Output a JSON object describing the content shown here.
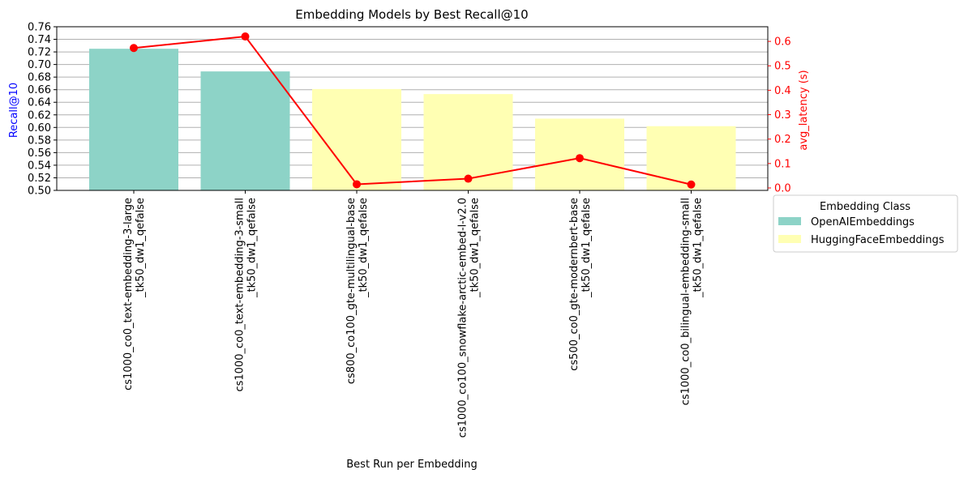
{
  "chart_data": {
    "type": "bar",
    "title": "Embedding Models by Best Recall@10",
    "xlabel": "Best Run per Embedding",
    "ylabel": "Recall@10",
    "y2label": "avg_latency (s)",
    "ylim": [
      0.5,
      0.76
    ],
    "y2lim": [
      -0.01,
      0.66
    ],
    "yticks": [
      "0.50",
      "0.52",
      "0.54",
      "0.56",
      "0.58",
      "0.60",
      "0.62",
      "0.64",
      "0.66",
      "0.68",
      "0.70",
      "0.72",
      "0.74",
      "0.76"
    ],
    "y2ticks": [
      "0.0",
      "0.1",
      "0.2",
      "0.3",
      "0.4",
      "0.5",
      "0.6"
    ],
    "grid": "horizontal",
    "categories": [
      [
        "cs1000_co0_text-embedding-3-large",
        "_tk50_dw1_qefalse"
      ],
      [
        "cs1000_co0_text-embedding-3-small",
        "_tk50_dw1_qefalse"
      ],
      [
        "cs800_co100_gte-multilingual-base",
        "_tk50_dw1_qefalse"
      ],
      [
        "cs1000_co100_snowflake-arctic-embed-l-v2.0",
        "_tk50_dw1_qefalse"
      ],
      [
        "cs500_co0_gte-modernbert-base",
        "_tk50_dw1_qefalse"
      ],
      [
        "cs1000_co0_bilingual-embedding-small",
        "_tk50_dw1_qefalse"
      ]
    ],
    "recall_values": [
      0.725,
      0.689,
      0.661,
      0.653,
      0.614,
      0.602
    ],
    "bar_class": [
      "OpenAIEmbeddings",
      "OpenAIEmbeddings",
      "HuggingFaceEmbeddings",
      "HuggingFaceEmbeddings",
      "HuggingFaceEmbeddings",
      "HuggingFaceEmbeddings"
    ],
    "latency_values": [
      0.573,
      0.62,
      0.015,
      0.038,
      0.122,
      0.014
    ],
    "legend": {
      "title": "Embedding Class",
      "placement": "right",
      "entries": [
        {
          "name": "OpenAIEmbeddings",
          "color": "#8dd3c7"
        },
        {
          "name": "HuggingFaceEmbeddings",
          "color": "#ffffb3"
        }
      ]
    },
    "colors": {
      "OpenAIEmbeddings": "#8dd3c7",
      "HuggingFaceEmbeddings": "#ffffb3",
      "line": "#ff0000",
      "ylabel": "#0000ff",
      "y2label": "#ff0000"
    }
  }
}
